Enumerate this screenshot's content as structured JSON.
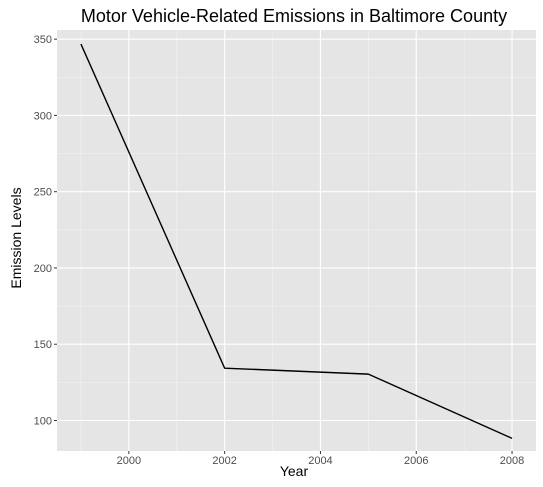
{
  "chart_data": {
    "type": "line",
    "title": "Motor Vehicle-Related Emissions in Baltimore County",
    "xlabel": "Year",
    "ylabel": "Emission Levels",
    "x": [
      1999,
      2002,
      2005,
      2008
    ],
    "series": [
      {
        "values": [
          346.8,
          134.3,
          130.4,
          88.3
        ]
      }
    ],
    "xlim": [
      1998.5,
      2008.5
    ],
    "ylim": [
      80,
      356
    ],
    "x_ticks": [
      2000,
      2002,
      2004,
      2006,
      2008
    ],
    "y_ticks": [
      100,
      150,
      200,
      250,
      300,
      350
    ],
    "x_tick_labels": [
      "2000",
      "2002",
      "2004",
      "2006",
      "2008"
    ],
    "y_tick_labels": [
      "100",
      "150",
      "200",
      "250",
      "300",
      "350"
    ],
    "grid": true,
    "panel_color": "#e5e5e5",
    "grid_color": "#ffffff",
    "line_color": "#000000"
  }
}
